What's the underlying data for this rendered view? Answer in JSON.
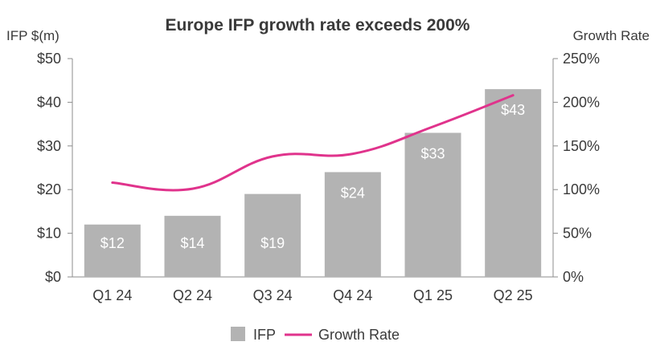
{
  "chart_data": {
    "type": "bar",
    "title": "Europe IFP growth rate exceeds 200%",
    "ylabel_left": "IFP $(m)",
    "ylabel_right": "Growth Rate",
    "categories": [
      "Q1 24",
      "Q2 24",
      "Q3 24",
      "Q4 24",
      "Q1 25",
      "Q2 25"
    ],
    "ylim_left": [
      0,
      50
    ],
    "ylim_right": [
      0,
      250
    ],
    "yticks_left": [
      "$0",
      "$10",
      "$20",
      "$30",
      "$40",
      "$50"
    ],
    "yticks_right": [
      "0%",
      "50%",
      "100%",
      "150%",
      "200%",
      "250%"
    ],
    "grid": false,
    "legend_position": "bottom",
    "series": [
      {
        "name": "IFP",
        "type": "bar",
        "axis": "left",
        "color": "#b3b3b3",
        "values": [
          12,
          14,
          19,
          24,
          33,
          43
        ],
        "labels": [
          "$12",
          "$14",
          "$19",
          "$24",
          "$33",
          "$43"
        ]
      },
      {
        "name": "Growth Rate",
        "type": "line",
        "axis": "right",
        "color": "#e0338c",
        "values": [
          108,
          101,
          138,
          141,
          172,
          208
        ]
      }
    ]
  }
}
